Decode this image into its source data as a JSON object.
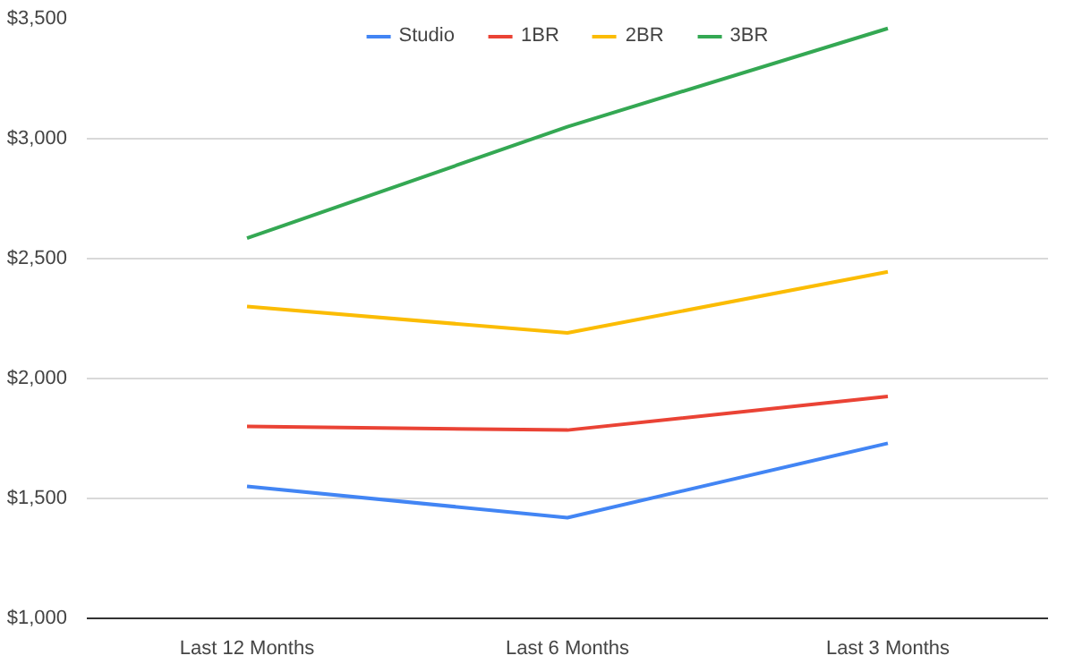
{
  "chart_data": {
    "type": "line",
    "categories": [
      "Last 12 Months",
      "Last 6 Months",
      "Last 3 Months"
    ],
    "series": [
      {
        "name": "Studio",
        "color": "#4285f4",
        "values": [
          1550,
          1420,
          1730
        ]
      },
      {
        "name": "1BR",
        "color": "#ea4335",
        "values": [
          1800,
          1785,
          1925
        ]
      },
      {
        "name": "2BR",
        "color": "#fbbc04",
        "values": [
          2300,
          2190,
          2445
        ]
      },
      {
        "name": "3BR",
        "color": "#34a853",
        "values": [
          2585,
          3050,
          3460
        ]
      }
    ],
    "ylim": [
      1000,
      3500
    ],
    "yticks": [
      {
        "value": 1000,
        "label": "$1,000"
      },
      {
        "value": 1500,
        "label": "$1,500"
      },
      {
        "value": 2000,
        "label": "$2,000"
      },
      {
        "value": 2500,
        "label": "$2,500"
      },
      {
        "value": 3000,
        "label": "$3,000"
      },
      {
        "value": 3500,
        "label": "$3,500"
      }
    ],
    "grid": "y",
    "legend": "top",
    "marker": "none",
    "line_style": "solid"
  }
}
